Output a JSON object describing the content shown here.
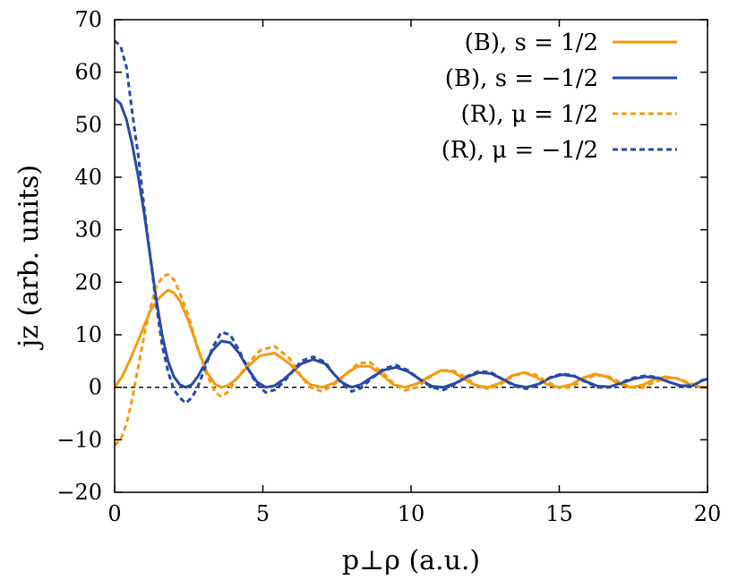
{
  "chart_data": {
    "type": "line",
    "xlabel": "p⊥ρ (a.u.)",
    "ylabel": "jz (arb. units)",
    "xlim": [
      0,
      20
    ],
    "ylim": [
      -20,
      70
    ],
    "x_ticks": [
      0,
      5,
      10,
      15,
      20
    ],
    "y_ticks": [
      -20,
      -10,
      0,
      10,
      20,
      30,
      40,
      50,
      60,
      70
    ],
    "x_tick_labels": [
      "0",
      "5",
      "10",
      "15",
      "20"
    ],
    "y_tick_labels": [
      "−20",
      "−10",
      "0",
      "10",
      "20",
      "30",
      "40",
      "50",
      "60",
      "70"
    ],
    "grid": false,
    "legend_position": "top-right",
    "zero_line": true,
    "colors": {
      "orange": "#f39c12",
      "blue": "#2a4aa8"
    },
    "series": [
      {
        "name": "(B), s = 1/2",
        "color": "#f39c12",
        "dash": "solid",
        "x": [
          0,
          0.25,
          0.5,
          0.8,
          1.2,
          1.5,
          1.8,
          2.0,
          2.2,
          2.5,
          2.8,
          3.1,
          3.4,
          3.6,
          3.8,
          4.1,
          4.5,
          4.9,
          5.4,
          5.9,
          6.3,
          6.6,
          7.0,
          7.4,
          7.8,
          8.2,
          8.6,
          9.0,
          9.4,
          9.8,
          10.2,
          10.6,
          11.0,
          11.4,
          11.8,
          12.2,
          12.6,
          13.0,
          13.4,
          13.8,
          14.2,
          14.6,
          15.0,
          15.4,
          15.8,
          16.2,
          16.6,
          17.0,
          17.4,
          17.8,
          18.2,
          18.6,
          19.0,
          19.4,
          19.8,
          20.0
        ],
        "y": [
          0,
          2,
          5,
          9,
          14.5,
          17,
          18.5,
          18,
          16.5,
          12.5,
          7.5,
          3,
          0.5,
          0,
          0.3,
          1.5,
          4,
          6,
          6.5,
          4.5,
          2,
          0.5,
          0,
          0.8,
          2.5,
          4,
          4,
          2.5,
          0.5,
          0,
          0.7,
          2,
          3.2,
          3,
          1.5,
          0.3,
          0,
          0.8,
          2.2,
          2.8,
          2,
          0.5,
          0,
          0.5,
          1.8,
          2.5,
          2,
          0.7,
          0,
          0.4,
          1.5,
          2,
          1.6,
          0.6,
          0,
          0
        ]
      },
      {
        "name": "(B), s = −1/2",
        "color": "#2a4aa8",
        "dash": "solid",
        "x": [
          0,
          0.2,
          0.4,
          0.6,
          0.8,
          1.0,
          1.2,
          1.4,
          1.6,
          1.8,
          2.0,
          2.2,
          2.4,
          2.6,
          2.8,
          3.0,
          3.3,
          3.6,
          3.9,
          4.2,
          4.5,
          4.8,
          5.1,
          5.4,
          5.7,
          6.0,
          6.3,
          6.7,
          7.1,
          7.4,
          7.7,
          8.0,
          8.3,
          8.7,
          9.1,
          9.5,
          9.9,
          10.3,
          10.7,
          11.1,
          11.5,
          11.9,
          12.3,
          12.7,
          13.1,
          13.5,
          13.9,
          14.3,
          14.7,
          15.1,
          15.5,
          15.9,
          16.3,
          16.7,
          17.1,
          17.5,
          17.9,
          18.3,
          18.7,
          19.1,
          19.5,
          19.8,
          20.0
        ],
        "y": [
          55,
          54,
          51,
          46,
          40,
          33,
          25,
          17,
          10,
          5,
          2,
          0.5,
          0,
          0.5,
          2,
          4,
          7,
          8.8,
          8.5,
          6.5,
          3.5,
          1,
          0,
          0.3,
          1.5,
          3,
          4.5,
          5.3,
          4.5,
          2.5,
          0.8,
          0,
          0.5,
          2,
          3.3,
          3.8,
          3,
          1.5,
          0.2,
          0,
          0.8,
          2,
          2.8,
          2.6,
          1.5,
          0.4,
          0,
          0.6,
          1.8,
          2.4,
          2.1,
          1.1,
          0.2,
          0.1,
          0.8,
          1.6,
          2,
          1.8,
          1,
          0.3,
          0.3,
          1.2,
          1.6
        ]
      },
      {
        "name": "(R), μ = 1/2",
        "color": "#f39c12",
        "dash": "dotted",
        "x": [
          0,
          0.2,
          0.4,
          0.6,
          0.8,
          1.0,
          1.2,
          1.4,
          1.6,
          1.8,
          2.0,
          2.2,
          2.5,
          2.8,
          3.1,
          3.4,
          3.6,
          3.8,
          4.1,
          4.5,
          4.9,
          5.4,
          5.9,
          6.3,
          6.6,
          7.0,
          7.4,
          7.8,
          8.2,
          8.6,
          9.0,
          9.4,
          9.8,
          10.2,
          10.6,
          11.0,
          11.4,
          11.8,
          12.2,
          12.6,
          13.0,
          13.4,
          13.8,
          14.2,
          14.6,
          15.0,
          15.4,
          15.8,
          16.2,
          16.6,
          17.0,
          17.4,
          17.8,
          18.2,
          18.6,
          19.0,
          19.4,
          19.8,
          20.0
        ],
        "y": [
          -11,
          -10,
          -7,
          -2,
          4,
          10,
          15,
          19,
          21,
          21.5,
          20.5,
          18,
          13.5,
          7.5,
          2.5,
          -1,
          -1.8,
          -1,
          1.5,
          4.5,
          7,
          7.8,
          5.5,
          2,
          0,
          -0.8,
          0.5,
          2.5,
          4.5,
          4.8,
          3,
          0.8,
          -0.6,
          0,
          1.8,
          3.2,
          3.2,
          2,
          0.4,
          -0.3,
          0.5,
          2,
          2.8,
          2.4,
          1,
          -0.1,
          0,
          1.2,
          2.3,
          2.2,
          1.1,
          0,
          -0.1,
          0.9,
          1.8,
          1.7,
          0.8,
          0,
          0
        ]
      },
      {
        "name": "(R), μ = −1/2",
        "color": "#2a4aa8",
        "dash": "dotted",
        "x": [
          0,
          0.2,
          0.4,
          0.6,
          0.8,
          1.0,
          1.2,
          1.4,
          1.6,
          1.8,
          2.0,
          2.2,
          2.4,
          2.6,
          2.8,
          3.0,
          3.3,
          3.6,
          3.9,
          4.2,
          4.5,
          4.8,
          5.1,
          5.4,
          5.7,
          6.0,
          6.3,
          6.7,
          7.1,
          7.4,
          7.7,
          8.0,
          8.3,
          8.7,
          9.1,
          9.5,
          9.9,
          10.3,
          10.7,
          11.1,
          11.5,
          11.9,
          12.3,
          12.7,
          13.1,
          13.5,
          13.9,
          14.3,
          14.7,
          15.1,
          15.5,
          15.9,
          16.3,
          16.7,
          17.1,
          17.5,
          17.9,
          18.3,
          18.7,
          19.1,
          19.5,
          19.8,
          20.0
        ],
        "y": [
          66,
          65,
          61,
          52,
          44,
          34,
          25,
          16,
          8,
          3,
          -0.5,
          -2,
          -3,
          -2,
          0,
          3,
          7.5,
          10.5,
          10,
          7,
          3.5,
          0.5,
          -1,
          -0.5,
          1,
          3,
          5,
          5.8,
          4.8,
          2.5,
          0.5,
          -0.8,
          -0.2,
          1.8,
          3.6,
          4.2,
          3.2,
          1.5,
          0,
          -0.5,
          0.6,
          2.1,
          3.1,
          2.8,
          1.5,
          0.2,
          -0.3,
          0.5,
          1.9,
          2.6,
          2.2,
          1,
          0,
          0,
          0.9,
          1.8,
          2.2,
          1.9,
          1,
          0.2,
          0.3,
          1.3,
          1.7
        ]
      }
    ]
  }
}
